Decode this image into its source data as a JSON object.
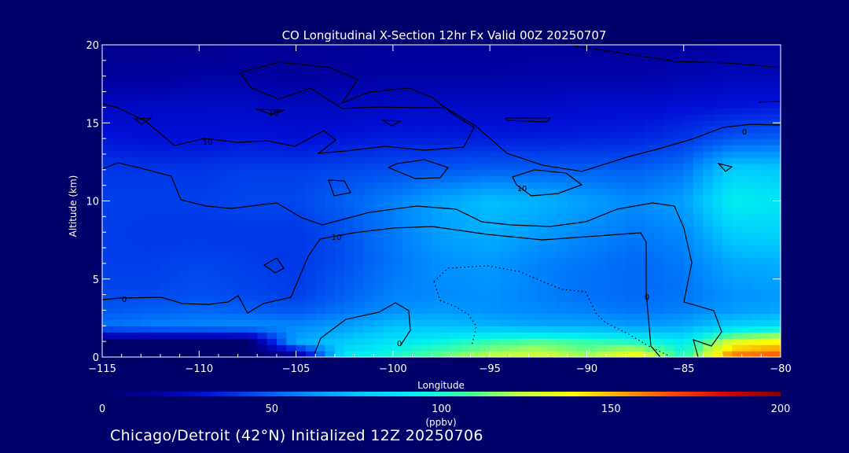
{
  "chart_data": {
    "type": "heatmap",
    "title": "CO Longitudinal X-Section 12hr  Fx Valid 00Z 20250707",
    "xlabel": "Longitude",
    "ylabel": "Altitude (km)",
    "xlim": [
      -115,
      -80
    ],
    "ylim": [
      0,
      20
    ],
    "x_ticks": [
      -115,
      -110,
      -105,
      -100,
      -95,
      -90,
      -85,
      -80
    ],
    "x_tick_labels": [
      "−115",
      "−110",
      "−105",
      "−100",
      "−95",
      "−90",
      "−85",
      "−80"
    ],
    "y_ticks": [
      0,
      5,
      10,
      15,
      20
    ],
    "y_tick_labels": [
      "0",
      "5",
      "10",
      "15",
      "20"
    ],
    "x": [
      -115,
      -112.5,
      -110,
      -107.5,
      -105,
      -102.5,
      -100,
      -97.5,
      -95,
      -92.5,
      -90,
      -87.5,
      -85,
      -82.5,
      -80
    ],
    "y": [
      0,
      1,
      2,
      3,
      4,
      6,
      8,
      10,
      12,
      14,
      16,
      18,
      20
    ],
    "z": [
      [
        0,
        0,
        0,
        0,
        0,
        90,
        100,
        115,
        125,
        130,
        120,
        145,
        100,
        165,
        170
      ],
      [
        0,
        0,
        0,
        0,
        68,
        78,
        88,
        95,
        105,
        110,
        105,
        100,
        90,
        130,
        140
      ],
      [
        55,
        58,
        60,
        62,
        60,
        65,
        75,
        75,
        72,
        68,
        68,
        65,
        68,
        80,
        85
      ],
      [
        48,
        50,
        52,
        50,
        48,
        55,
        62,
        65,
        62,
        60,
        58,
        55,
        58,
        65,
        68
      ],
      [
        44,
        44,
        46,
        44,
        42,
        50,
        58,
        60,
        62,
        58,
        54,
        52,
        55,
        62,
        64
      ],
      [
        42,
        42,
        44,
        42,
        40,
        46,
        55,
        62,
        64,
        58,
        55,
        52,
        56,
        68,
        70
      ],
      [
        42,
        40,
        40,
        40,
        40,
        46,
        56,
        66,
        70,
        65,
        60,
        56,
        60,
        80,
        82
      ],
      [
        42,
        42,
        42,
        44,
        44,
        50,
        58,
        68,
        75,
        72,
        66,
        60,
        66,
        92,
        88
      ],
      [
        40,
        40,
        40,
        42,
        42,
        44,
        46,
        48,
        50,
        50,
        50,
        50,
        55,
        80,
        78
      ],
      [
        32,
        30,
        30,
        32,
        30,
        32,
        34,
        34,
        34,
        34,
        35,
        36,
        40,
        48,
        50
      ],
      [
        24,
        26,
        26,
        26,
        24,
        24,
        26,
        26,
        26,
        26,
        28,
        28,
        30,
        32,
        34
      ],
      [
        14,
        14,
        16,
        16,
        14,
        16,
        16,
        16,
        16,
        18,
        18,
        18,
        20,
        22,
        22
      ],
      [
        10,
        10,
        10,
        12,
        12,
        12,
        14,
        14,
        14,
        14,
        14,
        14,
        14,
        16,
        16
      ]
    ],
    "contour_labels": [
      "0",
      "10",
      "10",
      "10",
      "0",
      "0",
      "10",
      "0"
    ],
    "colorbar": {
      "min": 0,
      "max": 200,
      "ticks": [
        0,
        50,
        100,
        150,
        200
      ],
      "label": "(ppbv)",
      "colors": [
        "#00006a",
        "#0000a0",
        "#0010d8",
        "#0050f0",
        "#0090ff",
        "#00c8ff",
        "#00f0f0",
        "#40ffa0",
        "#c0ff40",
        "#ffff00",
        "#ffa000",
        "#ff4000",
        "#d00000",
        "#800000"
      ]
    },
    "grid": false
  },
  "footer": "Chicago/Detroit (42°N) Initialized 12Z 20250706"
}
